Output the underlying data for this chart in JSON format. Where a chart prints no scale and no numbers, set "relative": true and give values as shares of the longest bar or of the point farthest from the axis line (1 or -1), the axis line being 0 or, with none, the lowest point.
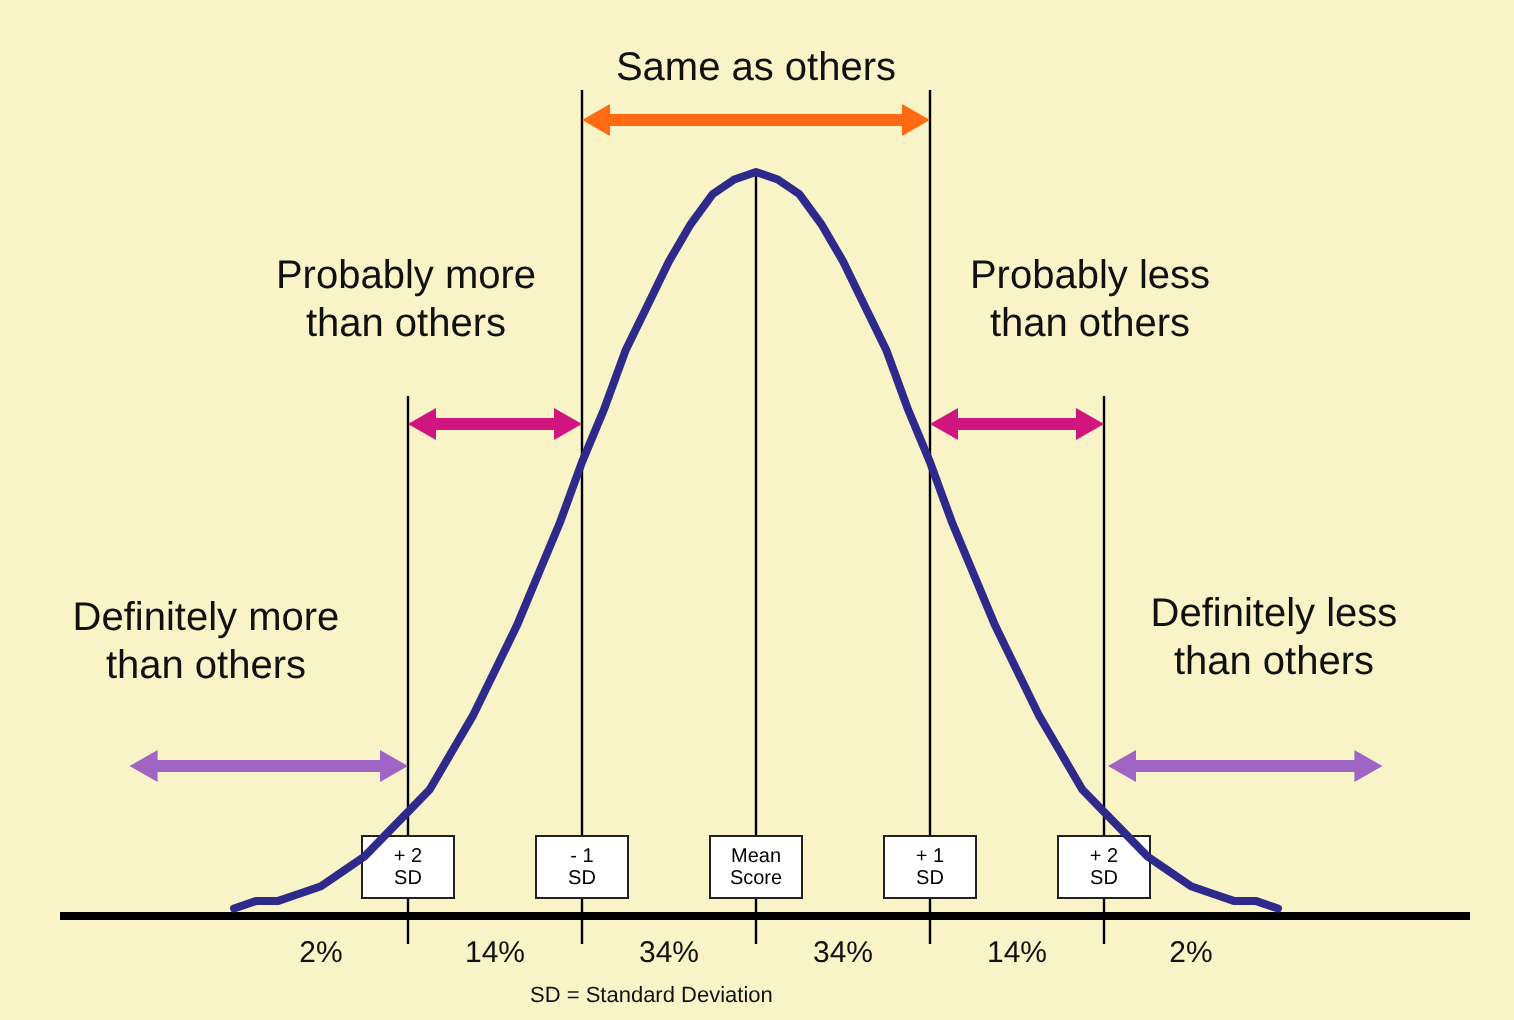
{
  "chart_data": {
    "type": "line",
    "relative": true,
    "grid": "x",
    "marker": "none",
    "line_style": "solid",
    "categories": [
      null,
      null,
      null,
      null,
      null,
      null,
      null,
      null,
      "+ 2\nSD",
      null,
      null,
      null,
      null,
      null,
      null,
      null,
      "- 1\nSD",
      null,
      null,
      null,
      null,
      null,
      null,
      null,
      "Mean\nScore",
      null,
      null,
      null,
      null,
      null,
      null,
      null,
      "+ 1\nSD",
      null,
      null,
      null,
      null,
      null,
      null,
      null,
      "+ 2\nSD",
      null,
      null,
      null,
      null,
      null,
      null,
      null,
      null
    ],
    "series": [
      {
        "color": "#2e2a8c",
        "values": [
          0.01,
          0.02,
          0.02,
          0.03,
          0.04,
          0.06,
          0.08,
          0.11,
          0.14,
          0.17,
          0.22,
          0.27,
          0.33,
          0.39,
          0.46,
          0.53,
          0.61,
          0.68,
          0.76,
          0.82,
          0.88,
          0.93,
          0.97,
          0.99,
          1,
          0.99,
          0.97,
          0.93,
          0.88,
          0.82,
          0.76,
          0.68,
          0.61,
          0.53,
          0.46,
          0.39,
          0.33,
          0.27,
          0.22,
          0.17,
          0.14,
          0.11,
          0.08,
          0.06,
          0.04,
          0.03,
          0.02,
          0.02,
          0.01
        ]
      }
    ],
    "annotations": [
      "Same as others",
      "Probably more\nthan others",
      "Probably less\nthan others",
      "Definitely more\nthan others",
      "Definitely less\nthan others",
      "2%",
      "14%",
      "34%",
      "34%",
      "14%",
      "2%",
      "SD = Standard Deviation"
    ]
  }
}
